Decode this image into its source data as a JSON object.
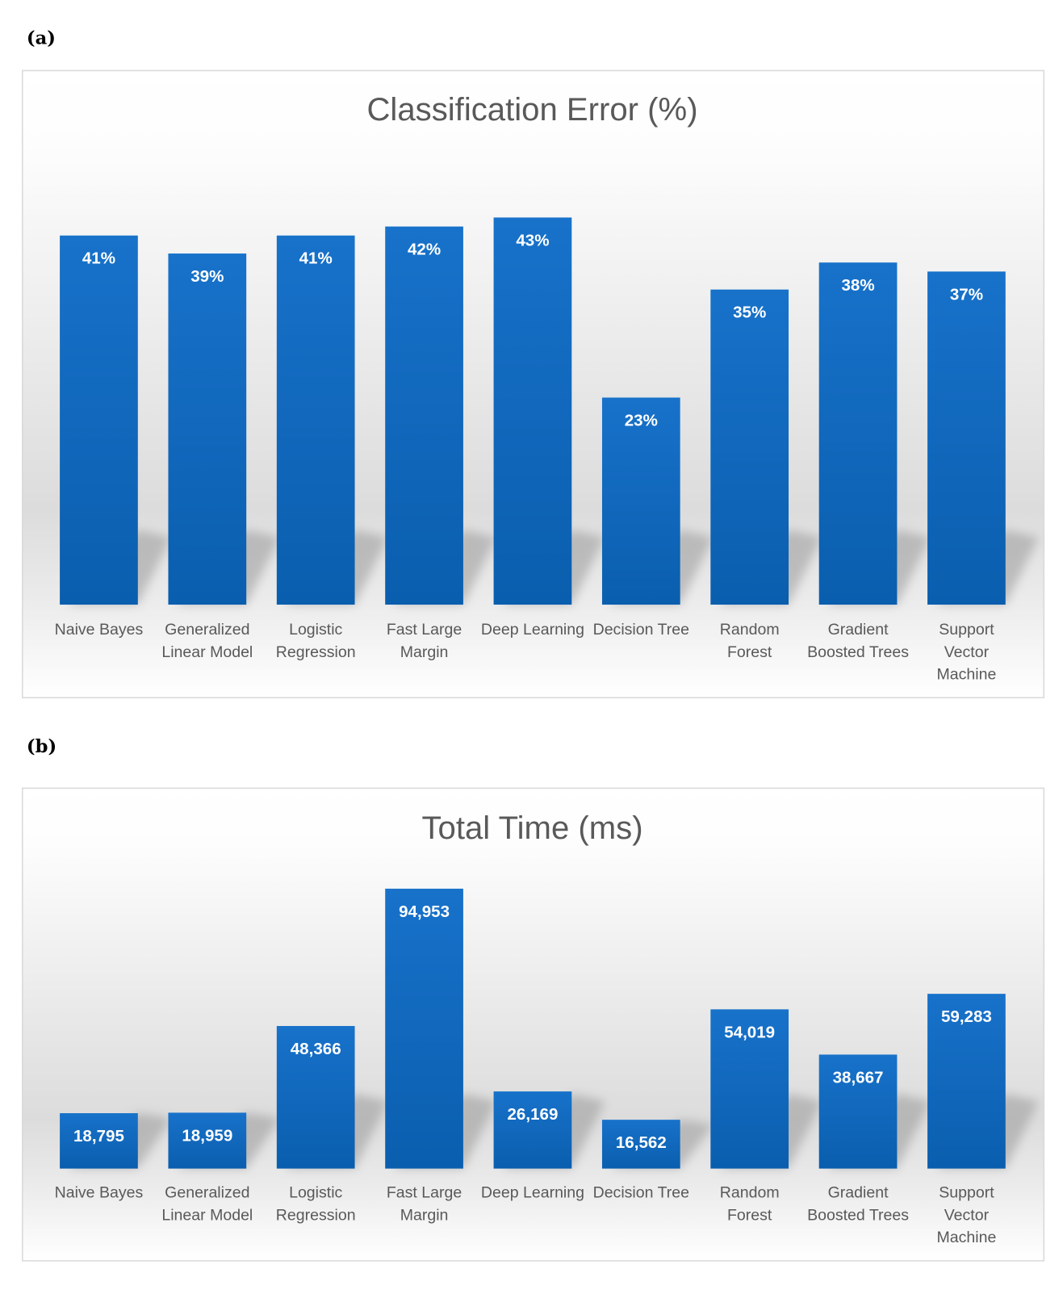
{
  "panels": [
    "(a)",
    "(b)"
  ],
  "colors": {
    "bar_top": "#1872CA",
    "bar_bottom": "#0A5EAE",
    "text": "#595959"
  },
  "chart_data": [
    {
      "type": "bar",
      "title": "Classification Error (%)",
      "xlabel": "",
      "ylabel": "",
      "categories": [
        [
          "Naive Bayes"
        ],
        [
          "Generalized",
          "Linear Model"
        ],
        [
          "Logistic",
          "Regression"
        ],
        [
          "Fast Large",
          "Margin"
        ],
        [
          "Deep Learning"
        ],
        [
          "Decision Tree"
        ],
        [
          "Random",
          "Forest"
        ],
        [
          "Gradient",
          "Boosted Trees"
        ],
        [
          "Support",
          "Vector",
          "Machine"
        ]
      ],
      "values": [
        41,
        39,
        41,
        42,
        43,
        23,
        35,
        38,
        37
      ],
      "value_labels": [
        "41%",
        "39%",
        "41%",
        "42%",
        "43%",
        "23%",
        "35%",
        "38%",
        "37%"
      ],
      "ylim": [
        0,
        52.4
      ],
      "grid": false,
      "legend": "none"
    },
    {
      "type": "bar",
      "title": "Total Time (ms)",
      "xlabel": "",
      "ylabel": "",
      "categories": [
        [
          "Naive Bayes"
        ],
        [
          "Generalized",
          "Linear Model"
        ],
        [
          "Logistic",
          "Regression"
        ],
        [
          "Fast Large",
          "Margin"
        ],
        [
          "Deep Learning"
        ],
        [
          "Decision Tree"
        ],
        [
          "Random",
          "Forest"
        ],
        [
          "Gradient",
          "Boosted Trees"
        ],
        [
          "Support",
          "Vector",
          "Machine"
        ]
      ],
      "values": [
        18795,
        18959,
        48366,
        94953,
        26169,
        16562,
        54019,
        38667,
        59283
      ],
      "value_labels": [
        "18,795",
        "18,959",
        "48,366",
        "94,953",
        "26,169",
        "16,562",
        "54,019",
        "38,667",
        "59,283"
      ],
      "ylim": [
        0,
        103400
      ],
      "grid": false,
      "legend": "none"
    }
  ]
}
